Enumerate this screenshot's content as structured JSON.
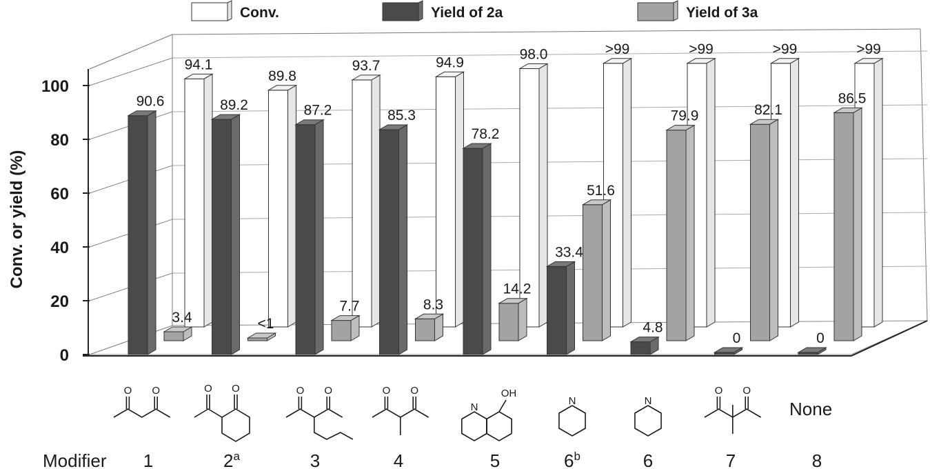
{
  "chart_data": {
    "type": "bar",
    "ylabel": "Conv. or yield (%)",
    "ylim": [
      0,
      100
    ],
    "yticks": [
      "0",
      "20",
      "40",
      "60",
      "80",
      "100"
    ],
    "grid": true,
    "legend_position": "top",
    "series": [
      {
        "name": "Conv.",
        "color": "#ffffff",
        "values": [
          94.1,
          89.8,
          93.7,
          94.9,
          98.0,
          100,
          100,
          100,
          100
        ],
        "labels": [
          "94.1",
          "89.8",
          "93.7",
          "94.9",
          "98.0",
          ">99",
          ">99",
          ">99",
          ">99"
        ]
      },
      {
        "name": "Yield of 2a",
        "color": "#555555",
        "values": [
          90.6,
          89.2,
          87.2,
          85.3,
          78.2,
          33.4,
          4.8,
          0,
          0
        ],
        "labels": [
          "90.6",
          "89.2",
          "87.2",
          "85.3",
          "78.2",
          "33.4",
          "4.8",
          "0",
          "0"
        ]
      },
      {
        "name": "Yield of 3a",
        "color": "#a6a6a6",
        "values": [
          3.4,
          0.5,
          7.7,
          8.3,
          14.2,
          51.6,
          79.9,
          82.1,
          86.5
        ],
        "labels": [
          "3.4",
          "<1",
          "7.7",
          "8.3",
          "14.2",
          "51.6",
          "79.9",
          "82.1",
          "86.5"
        ]
      }
    ],
    "x_title": "Modifier",
    "categories": [
      "1",
      "2",
      "3",
      "4",
      "5",
      "6",
      "6",
      "7",
      "8"
    ],
    "category_superscripts": [
      "",
      "a",
      "",
      "",
      "",
      "b",
      "",
      "",
      ""
    ],
    "structure_icons": [
      "pentane-2,4-dione",
      "2-acetylcyclohexanone",
      "3-propylpentane-2,4-dione",
      "3-methylpentane-2,4-dione",
      "8-hydroxyquinoline",
      "pyridine",
      "pyridine",
      "3,3-dimethylpentane-2,4-dione",
      "none"
    ],
    "none_label": "None",
    "atom_labels": {
      "oxygen": "O",
      "nitrogen": "N",
      "hydroxyl": "OH"
    }
  }
}
